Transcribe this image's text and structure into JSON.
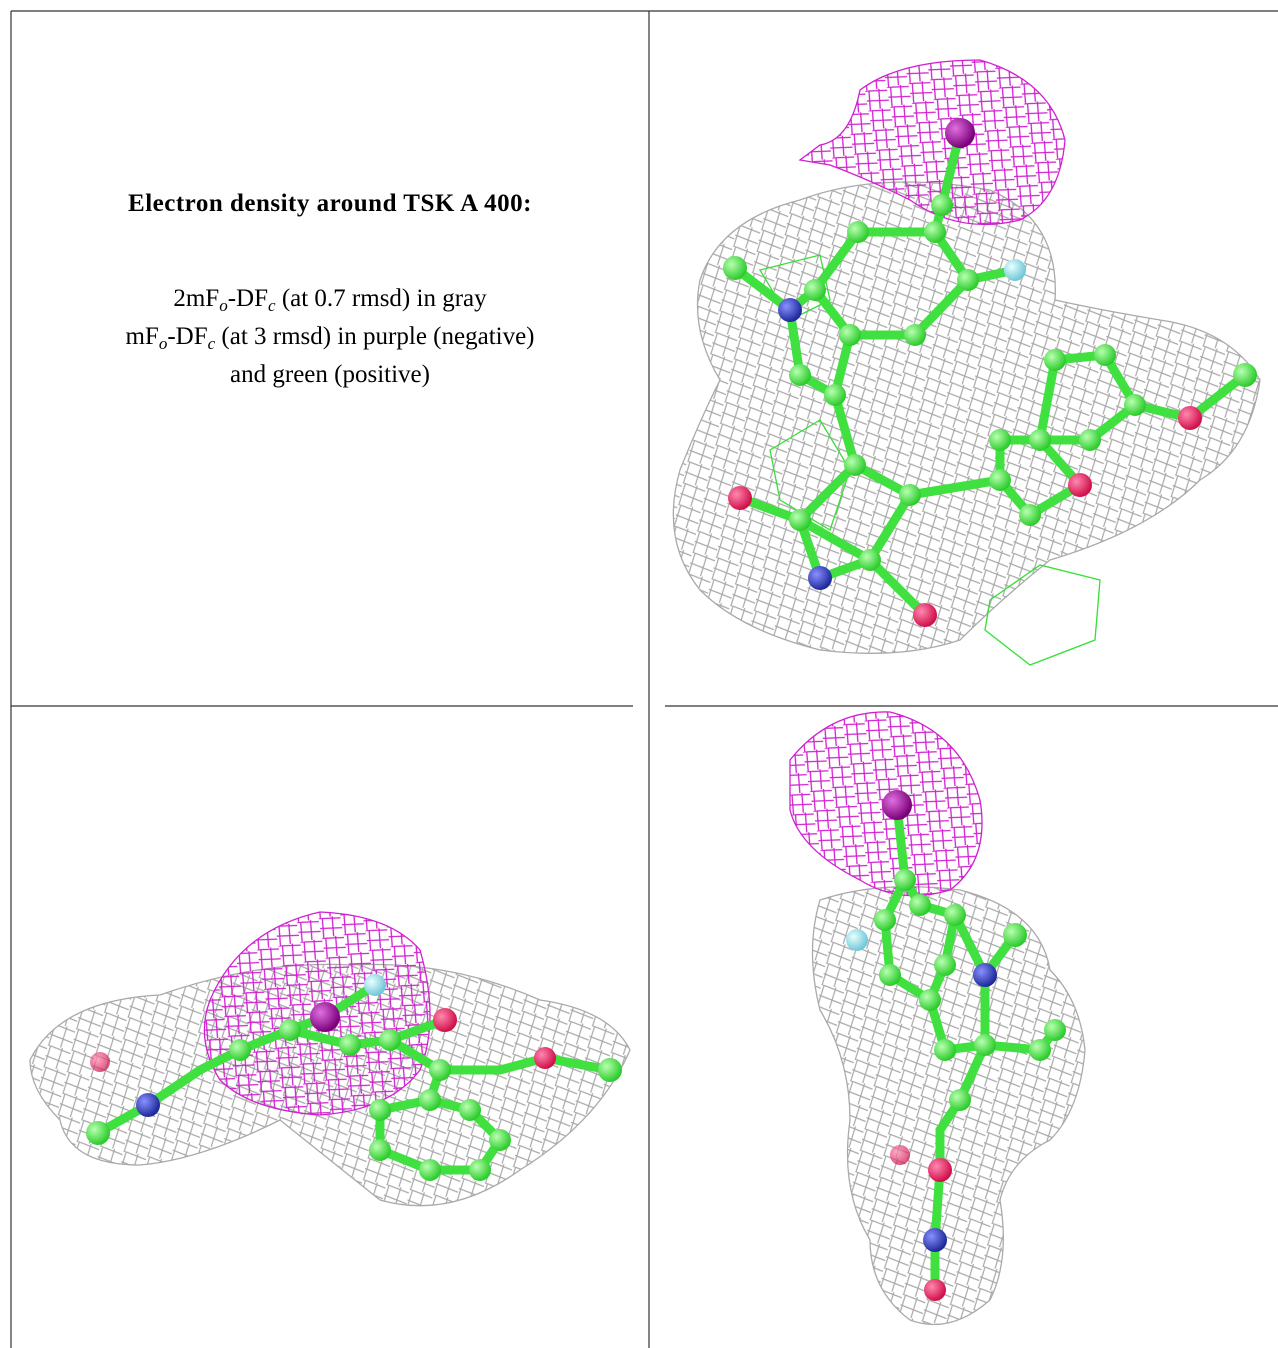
{
  "caption": {
    "title": "Electron density around TSK A 400:",
    "lines": [
      [
        "2mF",
        "o",
        "-DF",
        "c",
        " (at 0.7 rmsd) in gray"
      ],
      [
        "mF",
        "o",
        "-DF",
        "c",
        " (at 3 rmsd) in purple (negative)"
      ],
      [
        "and green (positive)"
      ]
    ]
  }
}
